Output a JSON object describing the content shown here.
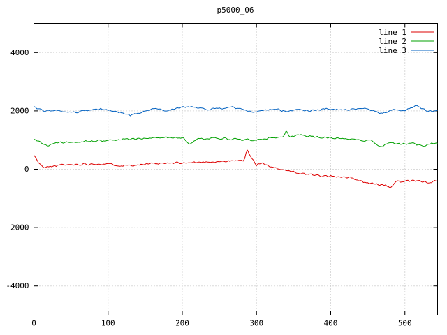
{
  "chart_data": {
    "type": "line",
    "title": "p5000_06",
    "xlabel": "",
    "ylabel": "",
    "xlim": [
      0,
      544
    ],
    "ylim": [
      -5000,
      5000
    ],
    "x_ticks": [
      0,
      100,
      200,
      300,
      400,
      500
    ],
    "y_ticks": [
      -4000,
      -2000,
      0,
      2000,
      4000
    ],
    "grid": true,
    "grid_style": "dotted",
    "legend_position": "top-right",
    "background_color": "#ffffff",
    "grid_color": "#b4b4b4",
    "axis_color": "#000000",
    "series": [
      {
        "name": "line 1",
        "color": "#dd0000",
        "noise": 45,
        "seed": 11,
        "trend": [
          [
            0,
            480
          ],
          [
            6,
            240
          ],
          [
            12,
            60
          ],
          [
            20,
            80
          ],
          [
            35,
            140
          ],
          [
            60,
            170
          ],
          [
            90,
            190
          ],
          [
            120,
            130
          ],
          [
            150,
            170
          ],
          [
            180,
            200
          ],
          [
            210,
            220
          ],
          [
            240,
            260
          ],
          [
            270,
            280
          ],
          [
            283,
            300
          ],
          [
            287,
            680
          ],
          [
            293,
            380
          ],
          [
            300,
            150
          ],
          [
            308,
            230
          ],
          [
            318,
            60
          ],
          [
            330,
            20
          ],
          [
            345,
            -60
          ],
          [
            360,
            -140
          ],
          [
            380,
            -220
          ],
          [
            400,
            -240
          ],
          [
            420,
            -260
          ],
          [
            435,
            -350
          ],
          [
            450,
            -480
          ],
          [
            465,
            -520
          ],
          [
            475,
            -560
          ],
          [
            480,
            -650
          ],
          [
            487,
            -420
          ],
          [
            500,
            -430
          ],
          [
            515,
            -400
          ],
          [
            530,
            -440
          ],
          [
            544,
            -420
          ]
        ]
      },
      {
        "name": "line 2",
        "color": "#00a000",
        "noise": 40,
        "seed": 22,
        "trend": [
          [
            0,
            1060
          ],
          [
            10,
            900
          ],
          [
            18,
            820
          ],
          [
            30,
            900
          ],
          [
            50,
            930
          ],
          [
            80,
            960
          ],
          [
            110,
            1000
          ],
          [
            140,
            1050
          ],
          [
            170,
            1090
          ],
          [
            200,
            1080
          ],
          [
            210,
            860
          ],
          [
            220,
            1020
          ],
          [
            240,
            1080
          ],
          [
            260,
            1050
          ],
          [
            280,
            1000
          ],
          [
            300,
            1010
          ],
          [
            320,
            1070
          ],
          [
            335,
            1080
          ],
          [
            340,
            1320
          ],
          [
            345,
            1100
          ],
          [
            360,
            1170
          ],
          [
            380,
            1100
          ],
          [
            400,
            1080
          ],
          [
            420,
            1060
          ],
          [
            440,
            1000
          ],
          [
            455,
            980
          ],
          [
            468,
            760
          ],
          [
            478,
            900
          ],
          [
            495,
            860
          ],
          [
            510,
            880
          ],
          [
            525,
            800
          ],
          [
            535,
            900
          ],
          [
            544,
            880
          ]
        ]
      },
      {
        "name": "line 3",
        "color": "#0060c0",
        "noise": 40,
        "seed": 33,
        "trend": [
          [
            0,
            2120
          ],
          [
            15,
            1980
          ],
          [
            30,
            2020
          ],
          [
            50,
            1950
          ],
          [
            70,
            2000
          ],
          [
            90,
            2060
          ],
          [
            110,
            1980
          ],
          [
            130,
            1850
          ],
          [
            145,
            1950
          ],
          [
            160,
            2060
          ],
          [
            180,
            2020
          ],
          [
            200,
            2120
          ],
          [
            215,
            2150
          ],
          [
            230,
            2060
          ],
          [
            250,
            2080
          ],
          [
            265,
            2140
          ],
          [
            280,
            2060
          ],
          [
            295,
            1950
          ],
          [
            310,
            2000
          ],
          [
            325,
            2060
          ],
          [
            340,
            1980
          ],
          [
            355,
            2040
          ],
          [
            370,
            2000
          ],
          [
            385,
            2040
          ],
          [
            400,
            2080
          ],
          [
            415,
            2020
          ],
          [
            430,
            2050
          ],
          [
            445,
            2100
          ],
          [
            460,
            1980
          ],
          [
            470,
            1900
          ],
          [
            485,
            2050
          ],
          [
            500,
            2030
          ],
          [
            515,
            2160
          ],
          [
            530,
            2000
          ],
          [
            544,
            2010
          ]
        ]
      }
    ]
  }
}
